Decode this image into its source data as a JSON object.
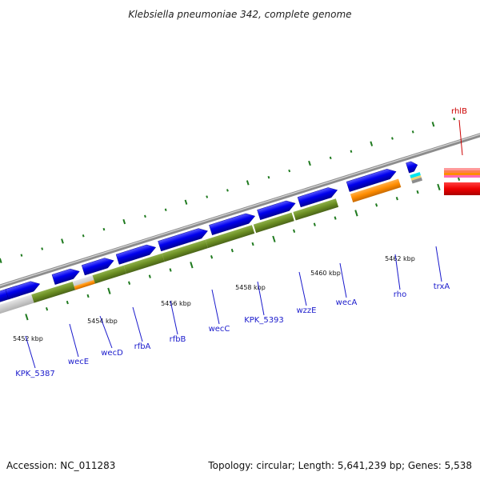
{
  "title": "Klebsiella pneumoniae 342, complete genome",
  "footer": {
    "accession": "Accession: NC_011283",
    "summary": "Topology: circular; Length: 5,641,239 bp; Genes: 5,538"
  },
  "colors": {
    "cds_forward": "#0000ee",
    "feature_olive": "#6b8e23",
    "feature_orange": "#ff8c00",
    "feature_grey": "#c8c8c8",
    "backbone": "#8c8c8c",
    "tick": "#1f7a1f",
    "label_blue": "#1a1acc",
    "label_red": "#cc0000"
  },
  "scale_labels": [
    "5452 kbp",
    "5454 kbp",
    "5456 kbp",
    "5458 kbp",
    "5460 kbp",
    "5462 kbp"
  ],
  "genes": [
    "KPK_5387",
    "wecE",
    "wecD",
    "rfbA",
    "rfbB",
    "wecC",
    "KPK_5393",
    "wzzE",
    "wecA",
    "rho",
    "trxA",
    "rhlB"
  ]
}
